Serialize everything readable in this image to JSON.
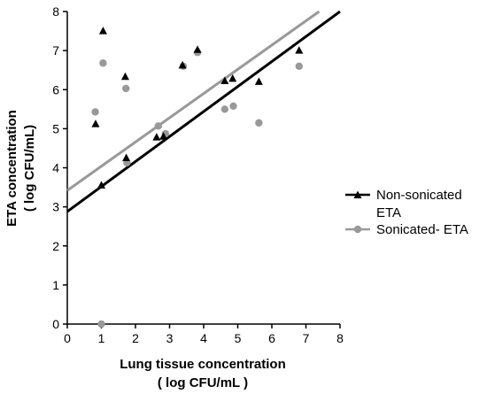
{
  "chart_data": {
    "type": "scatter",
    "xlabel": [
      "Lung tissue concentration",
      "( log CFU/mL )"
    ],
    "ylabel": [
      "ETA concentration",
      "( log CFU/mL)"
    ],
    "xlim": [
      0,
      8
    ],
    "ylim": [
      0,
      8
    ],
    "xticks": [
      "0",
      "1",
      "2",
      "3",
      "4",
      "5",
      "6",
      "7",
      "8"
    ],
    "yticks": [
      "0",
      "1",
      "2",
      "3",
      "4",
      "5",
      "6",
      "7",
      "8"
    ],
    "grid": false,
    "legend_position": "right",
    "series": [
      {
        "name": [
          "Non-sonicated",
          "ETA"
        ],
        "marker": "triangle",
        "color": "#000000",
        "points": [
          [
            0.83,
            5.12
          ],
          [
            1.0,
            3.55
          ],
          [
            1.05,
            7.5
          ],
          [
            1.7,
            6.33
          ],
          [
            1.73,
            4.25
          ],
          [
            2.62,
            4.78
          ],
          [
            2.82,
            4.8
          ],
          [
            3.38,
            6.62
          ],
          [
            3.82,
            7.02
          ],
          [
            4.62,
            6.22
          ],
          [
            4.85,
            6.28
          ],
          [
            5.62,
            6.2
          ],
          [
            6.8,
            7.0
          ]
        ],
        "fit": {
          "intercept": 2.88,
          "slope": 0.64
        }
      },
      {
        "name": [
          "Sonicated- ETA"
        ],
        "marker": "circle",
        "color": "#999999",
        "points": [
          [
            0.82,
            5.43
          ],
          [
            1.0,
            0.0
          ],
          [
            1.05,
            6.68
          ],
          [
            1.72,
            6.03
          ],
          [
            1.75,
            4.13
          ],
          [
            2.67,
            5.07
          ],
          [
            2.88,
            4.87
          ],
          [
            3.4,
            6.6
          ],
          [
            3.82,
            6.95
          ],
          [
            4.62,
            5.5
          ],
          [
            4.87,
            5.58
          ],
          [
            5.62,
            5.15
          ],
          [
            6.8,
            6.6
          ]
        ],
        "fit": {
          "intercept": 3.42,
          "slope": 0.62
        }
      }
    ]
  }
}
